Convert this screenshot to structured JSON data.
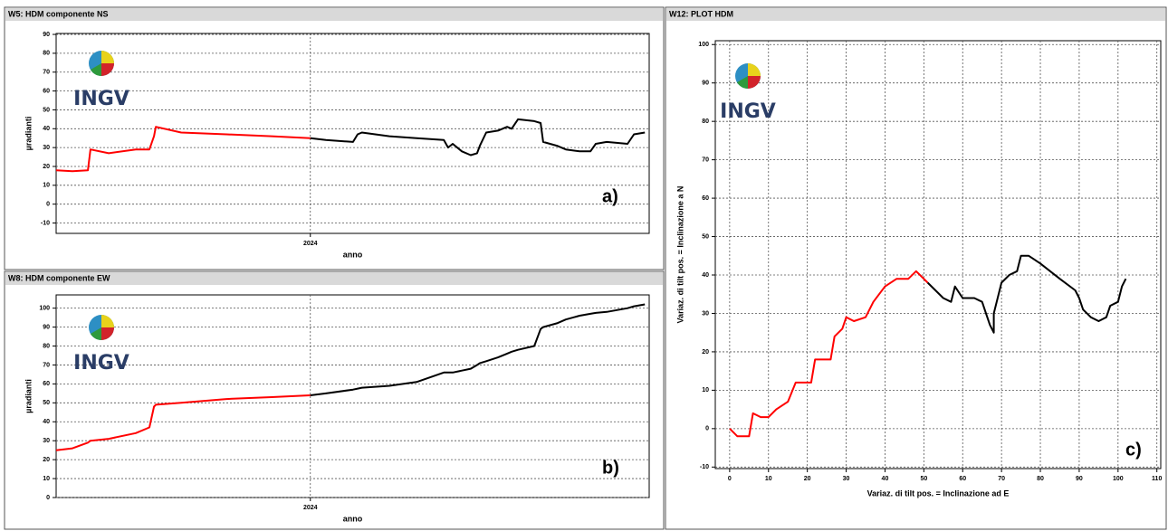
{
  "chart_data": [
    {
      "type": "line",
      "title": "W5: HDM componente NS",
      "ylabel": "µradianti",
      "xlabel": "anno",
      "annotation": "a)",
      "logo": "INGV",
      "xlim": [
        2023.0,
        2025.333
      ],
      "ylim": [
        -15.5,
        90.5
      ],
      "xticks": [
        2024
      ],
      "yticks": [
        -10,
        0,
        10,
        20,
        30,
        40,
        50,
        60,
        70,
        80,
        90
      ],
      "grid": true,
      "series": [
        {
          "color": "#ff0000",
          "x": [
            2023.0,
            2023.064,
            2023.125,
            2023.135,
            2023.207,
            2023.313,
            2023.367,
            2023.385,
            2023.392,
            2023.492,
            2023.67,
            2023.848,
            2024.0
          ],
          "values": [
            18,
            17.5,
            18,
            29,
            27,
            29,
            29,
            36,
            41,
            38,
            37,
            36,
            35
          ]
        },
        {
          "color": "#000000",
          "x": [
            2024.0,
            2024.061,
            2024.168,
            2024.186,
            2024.203,
            2024.311,
            2024.418,
            2024.525,
            2024.542,
            2024.56,
            2024.596,
            2024.631,
            2024.656,
            2024.667,
            2024.692,
            2024.738,
            2024.774,
            2024.792,
            2024.817,
            2024.881,
            2024.906,
            2024.916,
            2024.97,
            2025.005,
            2025.059,
            2025.102,
            2025.123,
            2025.166,
            2025.248,
            2025.273,
            2025.316
          ],
          "values": [
            35,
            34,
            33,
            37,
            38,
            36,
            35,
            34,
            30,
            32,
            28,
            26,
            27,
            31,
            38,
            39,
            41,
            40,
            45,
            44,
            43,
            33,
            31,
            29,
            28,
            28,
            32,
            33,
            32,
            37,
            38
          ]
        }
      ]
    },
    {
      "type": "line",
      "title": "W8: HDM componente EW",
      "ylabel": "µradianti",
      "xlabel": "anno",
      "annotation": "b)",
      "logo": "INGV",
      "xlim": [
        2023.0,
        2025.333
      ],
      "ylim": [
        0,
        107
      ],
      "xticks": [
        2024
      ],
      "yticks": [
        0,
        10,
        20,
        30,
        40,
        50,
        60,
        70,
        80,
        90,
        100
      ],
      "grid": true,
      "series": [
        {
          "color": "#ff0000",
          "x": [
            2023.0,
            2023.064,
            2023.125,
            2023.135,
            2023.207,
            2023.313,
            2023.367,
            2023.385,
            2023.392,
            2023.492,
            2023.67,
            2023.848,
            2024.0
          ],
          "values": [
            25,
            26,
            29,
            30,
            31,
            34,
            37,
            48,
            49,
            50,
            52,
            53,
            54
          ]
        },
        {
          "color": "#000000",
          "x": [
            2024.0,
            2024.061,
            2024.168,
            2024.186,
            2024.203,
            2024.311,
            2024.418,
            2024.525,
            2024.542,
            2024.56,
            2024.596,
            2024.631,
            2024.656,
            2024.667,
            2024.692,
            2024.738,
            2024.774,
            2024.792,
            2024.817,
            2024.881,
            2024.906,
            2024.916,
            2024.97,
            2025.005,
            2025.059,
            2025.102,
            2025.123,
            2025.166,
            2025.248,
            2025.273,
            2025.316
          ],
          "values": [
            54,
            55,
            57,
            57.5,
            58,
            59,
            61,
            66,
            66,
            66,
            67,
            68,
            70,
            71,
            72,
            74,
            76,
            77,
            78,
            80,
            89,
            90,
            92,
            94,
            96,
            97,
            97.5,
            98,
            100,
            101,
            102
          ]
        }
      ]
    },
    {
      "type": "line",
      "title": "W12: PLOT HDM",
      "ylabel": "Variaz. di tilt pos. = Inclinazione a N",
      "xlabel": "Variaz. di tilt pos. = Inclinazione ad E",
      "annotation": "c)",
      "logo": "INGV",
      "xlim": [
        -3.7,
        111
      ],
      "ylim": [
        -10.4,
        101
      ],
      "xticks": [
        0,
        10,
        20,
        30,
        40,
        50,
        60,
        70,
        80,
        90,
        100,
        110
      ],
      "yticks": [
        -10,
        0,
        10,
        20,
        30,
        40,
        50,
        60,
        70,
        80,
        90,
        100
      ],
      "grid": true,
      "series": [
        {
          "color": "#ff0000",
          "x": [
            0,
            2,
            5,
            6,
            8,
            10,
            12,
            15,
            17,
            19,
            21,
            22,
            24,
            26,
            27,
            29,
            30,
            32,
            35,
            37,
            40,
            43,
            46,
            48,
            50,
            51
          ],
          "values": [
            0,
            -2,
            -2,
            4,
            3,
            3,
            5,
            7,
            12,
            12,
            12,
            18,
            18,
            18,
            24,
            26,
            29,
            28,
            29,
            33,
            37,
            39,
            39,
            41,
            39,
            38
          ]
        },
        {
          "color": "#000000",
          "x": [
            51,
            55,
            57,
            58,
            60,
            63,
            65,
            66,
            67,
            68,
            68,
            70,
            72,
            74,
            75,
            77,
            80,
            85,
            89,
            90,
            91,
            93,
            95,
            97,
            98,
            100,
            101,
            102
          ],
          "values": [
            38,
            34,
            33,
            37,
            34,
            34,
            33,
            30,
            27,
            25,
            30,
            38,
            40,
            41,
            45,
            45,
            43,
            39,
            36,
            34,
            31,
            29,
            28,
            29,
            32,
            33,
            37,
            39
          ]
        }
      ]
    }
  ]
}
